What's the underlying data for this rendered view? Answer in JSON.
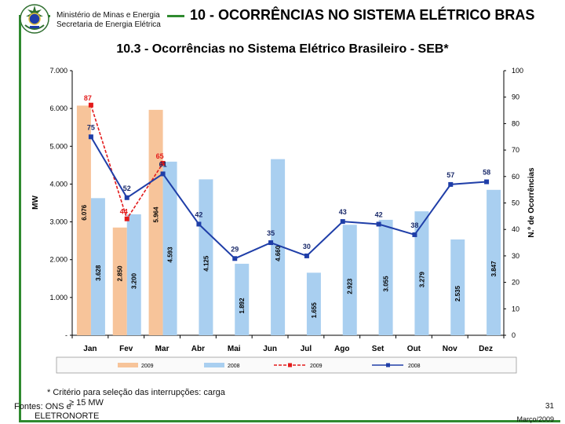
{
  "header": {
    "ministry_line1": "Ministério de Minas e Energia",
    "ministry_line2": "Secretaria de Energia Elétrica",
    "section_title": "10 - OCORRÊNCIAS NO SISTEMA ELÉTRICO BRAS"
  },
  "colors": {
    "frame": "#2f8a2f",
    "bar_2009": "#f7c49a",
    "bar_2008": "#a9cff0",
    "line_2009": "#e31b1b",
    "line_2008": "#1f3ea8"
  },
  "chart_data": {
    "type": "bar",
    "title": "10.3 - Ocorrências no Sistema Elétrico Brasileiro - SEB*",
    "ylabel": "MW",
    "y2label": "N.º de Ocorrências",
    "ylim": [
      0,
      7000
    ],
    "y2lim": [
      0,
      100
    ],
    "yticks": [
      "-",
      "1.000",
      "2.000",
      "3.000",
      "4.000",
      "5.000",
      "6.000",
      "7.000"
    ],
    "y2ticks": [
      "0",
      "10",
      "20",
      "30",
      "40",
      "50",
      "60",
      "70",
      "80",
      "90",
      "100"
    ],
    "categories": [
      "Jan",
      "Fev",
      "Mar",
      "Abr",
      "Mai",
      "Jun",
      "Jul",
      "Ago",
      "Set",
      "Out",
      "Nov",
      "Dez"
    ],
    "bar_series": [
      {
        "name": "2009",
        "values": [
          6076,
          2850,
          5964,
          null,
          null,
          null,
          null,
          null,
          null,
          null,
          null,
          null
        ],
        "labels": [
          "6.076",
          "2.850",
          "5.964",
          "",
          "",
          "",
          "",
          "",
          "",
          "",
          "",
          ""
        ]
      },
      {
        "name": "2008",
        "values": [
          3628,
          3200,
          4593,
          4125,
          1892,
          4660,
          1655,
          2923,
          3055,
          3279,
          2535,
          3847
        ],
        "labels": [
          "3.628",
          "3.200",
          "4.593",
          "4.125",
          "1.892",
          "4.660",
          "1.655",
          "2.923",
          "3.055",
          "3.279",
          "2.535",
          "3.847"
        ]
      }
    ],
    "line_series": [
      {
        "name": "2009",
        "values": [
          87,
          44,
          65,
          null,
          null,
          null,
          null,
          null,
          null,
          null,
          null,
          null
        ],
        "labels": [
          "87",
          "44",
          "65",
          "",
          "",
          "",
          "",
          "",
          "",
          "",
          "",
          ""
        ]
      },
      {
        "name": "2008",
        "values": [
          75,
          52,
          61,
          42,
          29,
          35,
          30,
          43,
          42,
          38,
          57,
          58
        ],
        "labels": [
          "75",
          "52",
          "61",
          "42",
          "29",
          "35",
          "30",
          "43",
          "42",
          "38",
          "57",
          "58"
        ]
      }
    ],
    "grid": false,
    "legend_position": "bottom"
  },
  "footer": {
    "note_line1": "* Critério para seleção das interrupções: carga",
    "note_line2": "≥ 15 MW",
    "sources_line1": "Fontes: ONS e",
    "sources_line2": "ELETRONORTE",
    "page_number": "31",
    "date": "Março/2009"
  }
}
